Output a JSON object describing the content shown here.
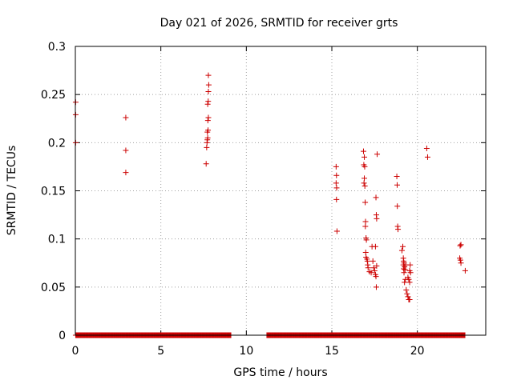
{
  "chart_data": {
    "type": "scatter",
    "title": "Day 021 of 2026, SRMTID for receiver grts",
    "xlabel": "GPS time / hours",
    "ylabel": "SRMTID / TECUs",
    "xlim": [
      0,
      24
    ],
    "ylim": [
      0,
      0.3
    ],
    "xticks": [
      0,
      5,
      10,
      15,
      20
    ],
    "yticks": [
      0,
      0.05,
      0.1,
      0.15,
      0.2,
      0.25,
      0.3
    ],
    "xtick_labels": [
      "0",
      "5",
      "10",
      "15",
      "20"
    ],
    "ytick_labels": [
      "0",
      "0.05",
      "0.1",
      "0.15",
      "0.2",
      "0.25",
      "0.3"
    ],
    "grid": true,
    "marker": "+",
    "color": "#cc0000",
    "zero_segments": [
      [
        0.02,
        9.1
      ],
      [
        11.2,
        22.8
      ]
    ],
    "zero_step": 0.033,
    "points": [
      [
        0.02,
        0.242
      ],
      [
        0.02,
        0.229
      ],
      [
        0.02,
        0.2
      ],
      [
        2.95,
        0.226
      ],
      [
        2.95,
        0.192
      ],
      [
        2.95,
        0.169
      ],
      [
        7.65,
        0.178
      ],
      [
        7.68,
        0.195
      ],
      [
        7.7,
        0.2
      ],
      [
        7.72,
        0.203
      ],
      [
        7.74,
        0.205
      ],
      [
        7.72,
        0.211
      ],
      [
        7.76,
        0.213
      ],
      [
        7.75,
        0.223
      ],
      [
        7.78,
        0.226
      ],
      [
        7.74,
        0.24
      ],
      [
        7.77,
        0.243
      ],
      [
        7.78,
        0.253
      ],
      [
        7.8,
        0.26
      ],
      [
        7.78,
        0.27
      ],
      [
        15.25,
        0.175
      ],
      [
        15.27,
        0.166
      ],
      [
        15.25,
        0.158
      ],
      [
        15.28,
        0.153
      ],
      [
        15.27,
        0.141
      ],
      [
        15.3,
        0.108
      ],
      [
        16.85,
        0.191
      ],
      [
        16.9,
        0.185
      ],
      [
        16.87,
        0.177
      ],
      [
        16.92,
        0.175
      ],
      [
        16.9,
        0.163
      ],
      [
        16.88,
        0.158
      ],
      [
        16.93,
        0.155
      ],
      [
        16.95,
        0.138
      ],
      [
        16.97,
        0.118
      ],
      [
        16.96,
        0.113
      ],
      [
        17.0,
        0.101
      ],
      [
        17.02,
        0.099
      ],
      [
        16.98,
        0.086
      ],
      [
        17.0,
        0.081
      ],
      [
        17.05,
        0.079
      ],
      [
        17.08,
        0.077
      ],
      [
        17.1,
        0.073
      ],
      [
        17.12,
        0.07
      ],
      [
        17.2,
        0.066
      ],
      [
        17.3,
        0.065
      ],
      [
        17.35,
        0.092
      ],
      [
        17.4,
        0.077
      ],
      [
        17.45,
        0.07
      ],
      [
        17.5,
        0.067
      ],
      [
        17.55,
        0.063
      ],
      [
        17.58,
        0.061
      ],
      [
        17.6,
        0.05
      ],
      [
        17.55,
        0.092
      ],
      [
        17.58,
        0.143
      ],
      [
        17.6,
        0.125
      ],
      [
        17.62,
        0.121
      ],
      [
        17.65,
        0.188
      ],
      [
        17.62,
        0.072
      ],
      [
        18.8,
        0.165
      ],
      [
        18.82,
        0.156
      ],
      [
        18.83,
        0.134
      ],
      [
        18.85,
        0.113
      ],
      [
        18.87,
        0.11
      ],
      [
        19.1,
        0.088
      ],
      [
        19.15,
        0.092
      ],
      [
        19.18,
        0.08
      ],
      [
        19.2,
        0.077
      ],
      [
        19.22,
        0.075
      ],
      [
        19.18,
        0.073
      ],
      [
        19.25,
        0.071
      ],
      [
        19.2,
        0.069
      ],
      [
        19.28,
        0.068
      ],
      [
        19.22,
        0.065
      ],
      [
        19.3,
        0.058
      ],
      [
        19.25,
        0.055
      ],
      [
        19.35,
        0.047
      ],
      [
        19.4,
        0.043
      ],
      [
        19.45,
        0.04
      ],
      [
        19.5,
        0.037
      ],
      [
        19.55,
        0.037
      ],
      [
        19.45,
        0.06
      ],
      [
        19.5,
        0.058
      ],
      [
        19.55,
        0.055
      ],
      [
        19.6,
        0.065
      ],
      [
        19.55,
        0.067
      ],
      [
        19.58,
        0.073
      ],
      [
        19.32,
        0.073
      ],
      [
        20.55,
        0.194
      ],
      [
        20.6,
        0.185
      ],
      [
        22.5,
        0.093
      ],
      [
        22.55,
        0.094
      ],
      [
        22.48,
        0.08
      ],
      [
        22.52,
        0.078
      ],
      [
        22.55,
        0.075
      ],
      [
        22.8,
        0.067
      ]
    ]
  }
}
